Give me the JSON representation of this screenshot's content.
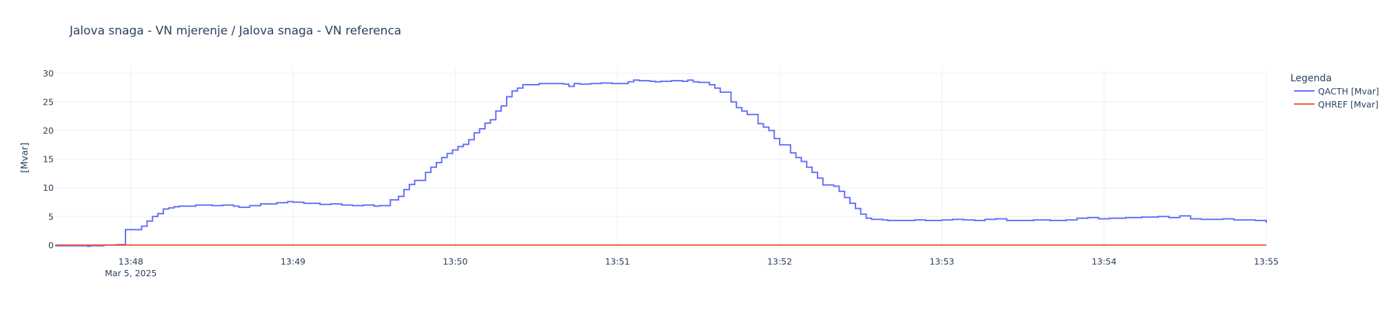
{
  "chart_data": {
    "type": "line",
    "line_shape": "step",
    "title": "Jalova snaga - VN mjerenje / Jalova snaga - VN referenca",
    "ylabel": "[Mvar]",
    "xlabel": "",
    "x_range": [
      "2025-03-05 13:47:32",
      "2025-03-05 13:55:00"
    ],
    "ylim": [
      -0.5,
      31
    ],
    "grid": true,
    "legend": {
      "title": "Legenda",
      "placement": "top-right, outside plot"
    },
    "x_ticks": [
      {
        "t": "2025-03-05 13:48",
        "label": "13:48",
        "sublabel": "Mar 5, 2025"
      },
      {
        "t": "2025-03-05 13:49",
        "label": "13:49"
      },
      {
        "t": "2025-03-05 13:50",
        "label": "13:50"
      },
      {
        "t": "2025-03-05 13:51",
        "label": "13:51"
      },
      {
        "t": "2025-03-05 13:52",
        "label": "13:52"
      },
      {
        "t": "2025-03-05 13:53",
        "label": "13:53"
      },
      {
        "t": "2025-03-05 13:54",
        "label": "13:54"
      },
      {
        "t": "2025-03-05 13:55",
        "label": "13:55"
      }
    ],
    "y_ticks": [
      0,
      5,
      10,
      15,
      20,
      25,
      30
    ],
    "series": [
      {
        "name": "QACTH [Mvar]",
        "color": "#636efa",
        "points": [
          [
            "13:47:32",
            -0.1
          ],
          [
            "13:47:44",
            -0.2
          ],
          [
            "13:47:45",
            -0.1
          ],
          [
            "13:47:46",
            -0.1
          ],
          [
            "13:47:50",
            0
          ],
          [
            "13:47:55",
            0.1
          ],
          [
            "13:47:58",
            2.7
          ],
          [
            "13:48:02",
            2.7
          ],
          [
            "13:48:04",
            3.3
          ],
          [
            "13:48:06",
            4.2
          ],
          [
            "13:48:08",
            5
          ],
          [
            "13:48:10",
            5.5
          ],
          [
            "13:48:12",
            6.3
          ],
          [
            "13:48:14",
            6.5
          ],
          [
            "13:48:16",
            6.7
          ],
          [
            "13:48:18",
            6.8
          ],
          [
            "13:48:24",
            7
          ],
          [
            "13:48:30",
            6.9
          ],
          [
            "13:48:34",
            7
          ],
          [
            "13:48:38",
            6.8
          ],
          [
            "13:48:40",
            6.6
          ],
          [
            "13:48:44",
            6.9
          ],
          [
            "13:48:48",
            7.2
          ],
          [
            "13:48:54",
            7.4
          ],
          [
            "13:48:58",
            7.6
          ],
          [
            "13:49:00",
            7.5
          ],
          [
            "13:49:04",
            7.3
          ],
          [
            "13:49:10",
            7.1
          ],
          [
            "13:49:14",
            7.2
          ],
          [
            "13:49:18",
            7
          ],
          [
            "13:49:22",
            6.9
          ],
          [
            "13:49:26",
            7
          ],
          [
            "13:49:30",
            6.8
          ],
          [
            "13:49:32",
            6.9
          ],
          [
            "13:49:36",
            7.9
          ],
          [
            "13:49:39",
            8.5
          ],
          [
            "13:49:41",
            9.7
          ],
          [
            "13:49:43",
            10.6
          ],
          [
            "13:49:45",
            11.3
          ],
          [
            "13:49:49",
            12.7
          ],
          [
            "13:49:51",
            13.6
          ],
          [
            "13:49:53",
            14.4
          ],
          [
            "13:49:55",
            15.3
          ],
          [
            "13:49:57",
            16
          ],
          [
            "13:49:59",
            16.6
          ],
          [
            "13:50:01",
            17.2
          ],
          [
            "13:50:03",
            17.6
          ],
          [
            "13:50:05",
            18.4
          ],
          [
            "13:50:07",
            19.6
          ],
          [
            "13:50:09",
            20.3
          ],
          [
            "13:50:11",
            21.3
          ],
          [
            "13:50:13",
            21.9
          ],
          [
            "13:50:15",
            23.4
          ],
          [
            "13:50:17",
            24.3
          ],
          [
            "13:50:19",
            25.9
          ],
          [
            "13:50:21",
            26.9
          ],
          [
            "13:50:23",
            27.4
          ],
          [
            "13:50:25",
            28
          ],
          [
            "13:50:31",
            28.2
          ],
          [
            "13:50:40",
            28.1
          ],
          [
            "13:50:42",
            27.7
          ],
          [
            "13:50:44",
            28.2
          ],
          [
            "13:50:46",
            28.1
          ],
          [
            "13:50:50",
            28.2
          ],
          [
            "13:50:54",
            28.3
          ],
          [
            "13:50:58",
            28.2
          ],
          [
            "13:51:00",
            28.2
          ],
          [
            "13:51:04",
            28.5
          ],
          [
            "13:51:06",
            28.8
          ],
          [
            "13:51:08",
            28.7
          ],
          [
            "13:51:12",
            28.6
          ],
          [
            "13:51:14",
            28.5
          ],
          [
            "13:51:16",
            28.6
          ],
          [
            "13:51:20",
            28.7
          ],
          [
            "13:51:24",
            28.6
          ],
          [
            "13:51:26",
            28.8
          ],
          [
            "13:51:28",
            28.5
          ],
          [
            "13:51:30",
            28.4
          ],
          [
            "13:51:34",
            28
          ],
          [
            "13:51:36",
            27.4
          ],
          [
            "13:51:38",
            26.7
          ],
          [
            "13:51:42",
            25
          ],
          [
            "13:51:44",
            24
          ],
          [
            "13:51:46",
            23.4
          ],
          [
            "13:51:48",
            22.8
          ],
          [
            "13:51:52",
            21.2
          ],
          [
            "13:51:54",
            20.6
          ],
          [
            "13:51:56",
            20
          ],
          [
            "13:51:58",
            18.6
          ],
          [
            "13:52:00",
            17.5
          ],
          [
            "13:52:04",
            16.1
          ],
          [
            "13:52:06",
            15.3
          ],
          [
            "13:52:08",
            14.6
          ],
          [
            "13:52:10",
            13.6
          ],
          [
            "13:52:12",
            12.7
          ],
          [
            "13:52:14",
            11.7
          ],
          [
            "13:52:16",
            10.5
          ],
          [
            "13:52:20",
            10.3
          ],
          [
            "13:52:22",
            9.4
          ],
          [
            "13:52:24",
            8.3
          ],
          [
            "13:52:26",
            7.3
          ],
          [
            "13:52:28",
            6.4
          ],
          [
            "13:52:30",
            5.4
          ],
          [
            "13:52:32",
            4.7
          ],
          [
            "13:52:34",
            4.5
          ],
          [
            "13:52:38",
            4.4
          ],
          [
            "13:52:40",
            4.3
          ],
          [
            "13:52:50",
            4.4
          ],
          [
            "13:52:54",
            4.3
          ],
          [
            "13:53:00",
            4.4
          ],
          [
            "13:53:04",
            4.5
          ],
          [
            "13:53:08",
            4.4
          ],
          [
            "13:53:12",
            4.3
          ],
          [
            "13:53:16",
            4.5
          ],
          [
            "13:53:20",
            4.6
          ],
          [
            "13:53:24",
            4.3
          ],
          [
            "13:53:34",
            4.4
          ],
          [
            "13:53:40",
            4.3
          ],
          [
            "13:53:46",
            4.4
          ],
          [
            "13:53:50",
            4.7
          ],
          [
            "13:53:54",
            4.8
          ],
          [
            "13:53:58",
            4.6
          ],
          [
            "13:54:02",
            4.7
          ],
          [
            "13:54:08",
            4.8
          ],
          [
            "13:54:14",
            4.9
          ],
          [
            "13:54:20",
            5
          ],
          [
            "13:54:24",
            4.8
          ],
          [
            "13:54:28",
            5.1
          ],
          [
            "13:54:32",
            4.6
          ],
          [
            "13:54:36",
            4.5
          ],
          [
            "13:54:44",
            4.6
          ],
          [
            "13:54:48",
            4.4
          ],
          [
            "13:54:56",
            4.3
          ],
          [
            "13:55:00",
            3.9
          ]
        ]
      },
      {
        "name": "QHREF [Mvar]",
        "color": "#ef553b",
        "points": [
          [
            "13:47:32",
            0
          ],
          [
            "13:55:00",
            0
          ]
        ]
      }
    ]
  }
}
